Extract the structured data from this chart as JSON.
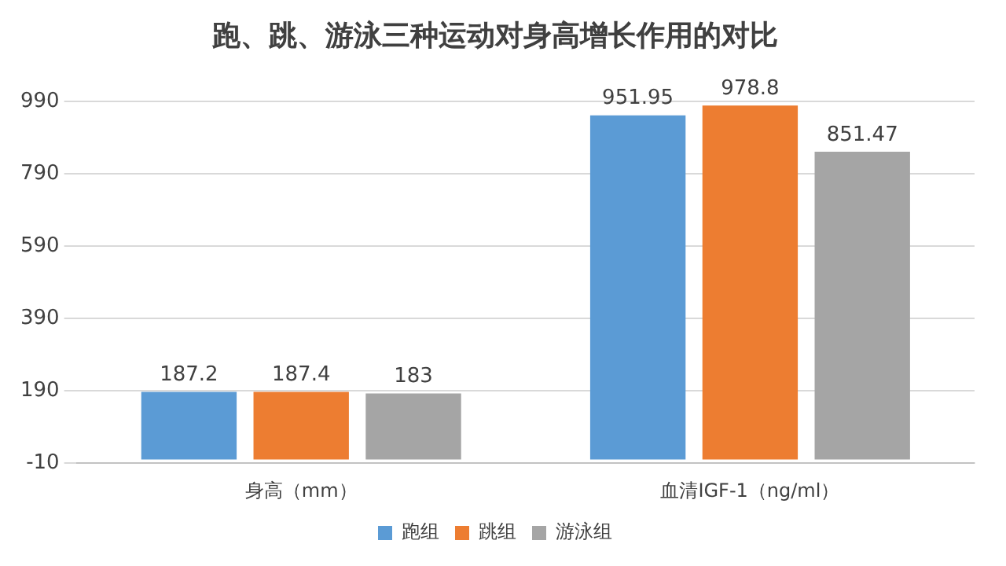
{
  "chart_data": {
    "type": "bar",
    "title": "跑、跳、游泳三种运动对身高增长作用的对比",
    "categories": [
      "身高（mm）",
      "血清IGF-1（ng/ml）"
    ],
    "series": [
      {
        "name": "跑组",
        "color": "#5b9bd5",
        "values": [
          187.2,
          951.95
        ]
      },
      {
        "name": "跳组",
        "color": "#ed7d31",
        "values": [
          187.4,
          978.8
        ]
      },
      {
        "name": "游泳组",
        "color": "#a5a5a5",
        "values": [
          183,
          851.47
        ]
      }
    ],
    "ylim": [
      -10,
      990
    ],
    "yticks": [
      -10,
      190,
      390,
      590,
      790,
      990
    ],
    "grid": "y",
    "legend": "bottom",
    "data_labels": true
  }
}
